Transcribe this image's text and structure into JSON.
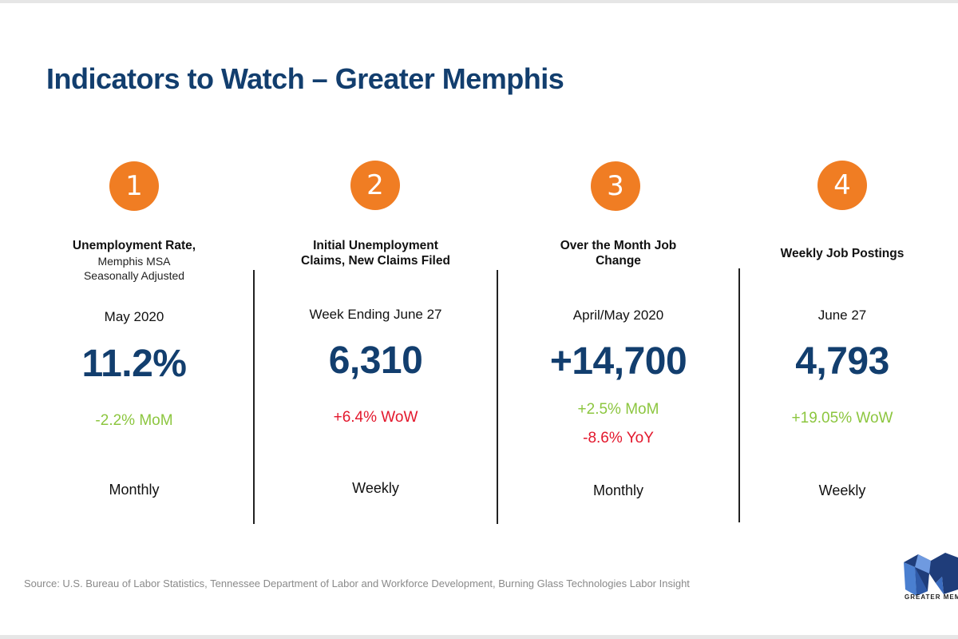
{
  "title": "Indicators to Watch – Greater Memphis",
  "indicators": [
    {
      "number": "1",
      "heading": "Unemployment Rate,",
      "subheading_1": "Memphis MSA",
      "subheading_2": "Seasonally Adjusted",
      "period": "May 2020",
      "value": "11.2%",
      "change_1": "-2.2% MoM",
      "frequency": "Monthly"
    },
    {
      "number": "2",
      "heading_1": "Initial Unemployment",
      "heading_2": "Claims, New Claims Filed",
      "period": "Week Ending June 27",
      "value": "6,310",
      "change_1": "+6.4% WoW",
      "frequency": "Weekly"
    },
    {
      "number": "3",
      "heading_1": "Over the Month Job",
      "heading_2": "Change",
      "period": "April/May 2020",
      "value": "+14,700",
      "change_1": "+2.5% MoM",
      "change_2": "-8.6% YoY",
      "frequency": "Monthly"
    },
    {
      "number": "4",
      "heading": "Weekly Job Postings",
      "period": "June 27",
      "value": "4,793",
      "change_1": "+19.05% WoW",
      "frequency": "Weekly"
    }
  ],
  "source": "Source: U.S. Bureau of Labor Statistics, Tennessee Department of Labor and Workforce Development, Burning Glass Technologies Labor Insight",
  "logo_text": "GREATER MEMPHIS",
  "colors": {
    "title": "#123e6e",
    "badge": "#f07d23",
    "positive": "#8cc63f",
    "negative": "#e3182d"
  }
}
